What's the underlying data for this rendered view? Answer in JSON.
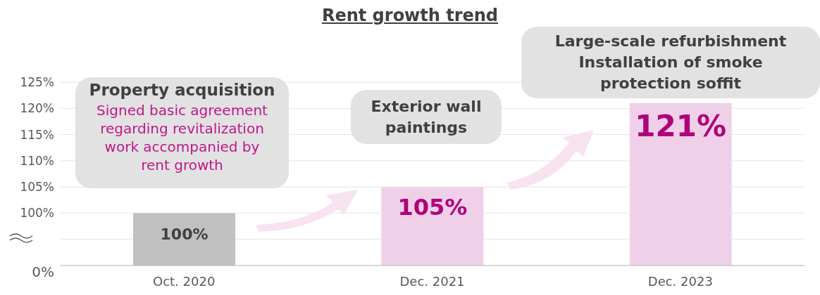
{
  "chart_data": {
    "type": "bar",
    "title": "Rent growth trend",
    "categories": [
      "Oct. 2020",
      "Dec. 2021",
      "Dec. 2023"
    ],
    "values": [
      100,
      105,
      121
    ],
    "colors": [
      "#c0c0c0",
      "#f0d0e8",
      "#f0d0e8"
    ],
    "value_labels": [
      "100%",
      "105%",
      "121%"
    ],
    "ylim": [
      90,
      125
    ],
    "yticks": [
      {
        "value": 90,
        "label": null
      },
      {
        "value": 95,
        "label": null
      },
      {
        "value": 100,
        "label": "100%"
      },
      {
        "value": 105,
        "label": "105%"
      },
      {
        "value": 110,
        "label": "110%"
      },
      {
        "value": 115,
        "label": "115%"
      },
      {
        "value": 120,
        "label": "120%"
      },
      {
        "value": 125,
        "label": "125%"
      }
    ],
    "grid": "y",
    "annotations": [
      "Property acquisition",
      "Signed basic agreement regarding revitalization work accompanied by rent growth",
      "Exterior wall paintings",
      "Large-scale refurbishment",
      "Installation of smoke protection soffit",
      "0%"
    ]
  }
}
